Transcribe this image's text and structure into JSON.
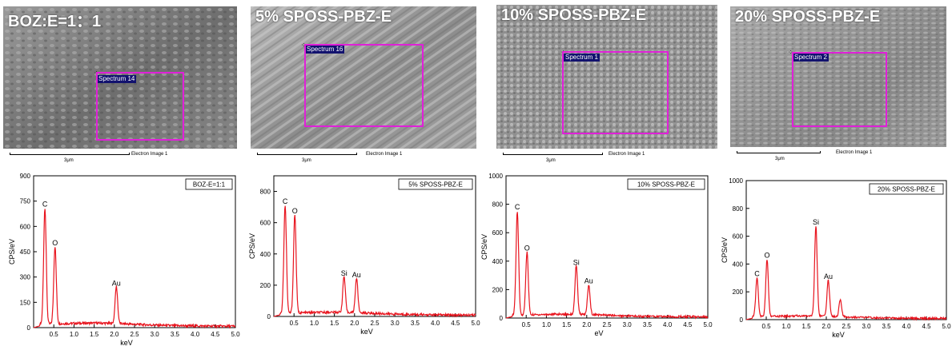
{
  "panels": [
    {
      "title": "BOZ:E=1：1",
      "roi_label": "Spectrum 14",
      "scale_bar_label": "3μm",
      "image_label": "Electron Image 1"
    },
    {
      "title": "5% SPOSS-PBZ-E",
      "roi_label": "Spectrum 16",
      "scale_bar_label": "3μm",
      "image_label": "Electron Image 1"
    },
    {
      "title": "10% SPOSS-PBZ-E",
      "roi_label": "Spectrum 1",
      "scale_bar_label": "3μm",
      "image_label": "Electron Image 1"
    },
    {
      "title": "20% SPOSS-PBZ-E",
      "roi_label": "Spectrum 2",
      "scale_bar_label": "3μm",
      "image_label": "Electron Image 1"
    }
  ],
  "colors": {
    "spectrum_line": "#e8141e",
    "roi_box": "#e020d8"
  },
  "chart_data": [
    {
      "type": "line",
      "legend": "BOZ-E=1:1",
      "xlabel": "keV",
      "ylabel": "CPS/eV",
      "xlim": [
        0,
        5.0
      ],
      "ylim": [
        0,
        900
      ],
      "xticks": [
        "0.5",
        "1.0",
        "1.5",
        "2.0",
        "2.5",
        "3.0",
        "3.5",
        "4.0",
        "4.5",
        "5.0"
      ],
      "yticks": [
        "0",
        "150",
        "300",
        "450",
        "600",
        "750",
        "900"
      ],
      "peaks": [
        {
          "element": "C",
          "x": 0.28,
          "y": 690
        },
        {
          "element": "O",
          "x": 0.53,
          "y": 460
        },
        {
          "element": "Au",
          "x": 2.05,
          "y": 220
        }
      ]
    },
    {
      "type": "line",
      "legend": "5% SPOSS-PBZ-E",
      "xlabel": "keV",
      "ylabel": "CPS/eV",
      "xlim": [
        0,
        5.0
      ],
      "ylim": [
        0,
        900
      ],
      "xticks": [
        "0.5",
        "1.0",
        "1.5",
        "2.0",
        "2.5",
        "3.0",
        "3.5",
        "4.0",
        "4.5",
        "5.0"
      ],
      "yticks": [
        "0",
        "200",
        "400",
        "600",
        "800"
      ],
      "peaks": [
        {
          "element": "C",
          "x": 0.28,
          "y": 690
        },
        {
          "element": "O",
          "x": 0.52,
          "y": 630
        },
        {
          "element": "Si",
          "x": 1.74,
          "y": 230
        },
        {
          "element": "Au",
          "x": 2.05,
          "y": 220
        }
      ]
    },
    {
      "type": "line",
      "legend": "10% SPOSS-PBZ-E",
      "xlabel": "eV",
      "ylabel": "CPS/eV",
      "xlim": [
        0,
        5.0
      ],
      "ylim": [
        0,
        1000
      ],
      "xticks": [
        "0.5",
        "1.0",
        "1.5",
        "2.0",
        "2.5",
        "3.0",
        "3.5",
        "4.0",
        "4.5",
        "5.0"
      ],
      "yticks": [
        "0",
        "200",
        "400",
        "600",
        "800",
        "1000"
      ],
      "peaks": [
        {
          "element": "C",
          "x": 0.28,
          "y": 730
        },
        {
          "element": "O",
          "x": 0.52,
          "y": 440
        },
        {
          "element": "Si",
          "x": 1.74,
          "y": 340
        },
        {
          "element": "Au",
          "x": 2.05,
          "y": 210
        }
      ]
    },
    {
      "type": "line",
      "legend": "20% SPOSS-PBZ-E",
      "xlabel": "keV",
      "ylabel": "CPS/eV",
      "xlim": [
        0,
        5.0
      ],
      "ylim": [
        0,
        1000
      ],
      "xticks": [
        "0.5",
        "1.0",
        "1.5",
        "2.0",
        "2.5",
        "3.0",
        "3.5",
        "4.0",
        "4.5",
        "5.0"
      ],
      "yticks": [
        "0",
        "200",
        "400",
        "600",
        "800",
        "1000"
      ],
      "peaks": [
        {
          "element": "C",
          "x": 0.27,
          "y": 280
        },
        {
          "element": "O",
          "x": 0.52,
          "y": 410
        },
        {
          "element": "Si",
          "x": 1.74,
          "y": 650
        },
        {
          "element": "Au",
          "x": 2.05,
          "y": 260
        },
        {
          "element": "",
          "x": 2.35,
          "y": 120
        }
      ]
    }
  ]
}
